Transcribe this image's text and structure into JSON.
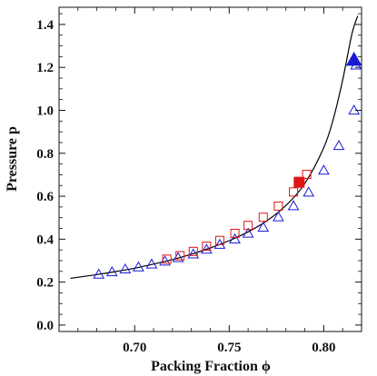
{
  "chart_data": {
    "type": "scatter",
    "title": "",
    "xlabel": "Packing Fraction ϕ",
    "ylabel": "Pressure p",
    "xlim": [
      0.66,
      0.82
    ],
    "ylim": [
      -0.03,
      1.48
    ],
    "x_ticks": [
      0.7,
      0.75,
      0.8
    ],
    "x_tick_labels": [
      "0.70",
      "0.75",
      "0.80"
    ],
    "y_ticks": [
      0.0,
      0.2,
      0.4,
      0.6,
      0.8,
      1.0,
      1.2,
      1.4
    ],
    "y_tick_labels": [
      "0.0",
      "0.2",
      "0.4",
      "0.6",
      "0.8",
      "1.0",
      "1.2",
      "1.4"
    ],
    "grid": false,
    "colors": {
      "curve": "#000000",
      "triangles": "#1a1ad6",
      "squares": "#e01414",
      "axes": "#111111"
    },
    "series": [
      {
        "marker": "open-triangle",
        "color": "#1a1ad6",
        "x": [
          0.681,
          0.688,
          0.695,
          0.702,
          0.709,
          0.716,
          0.723,
          0.731,
          0.738,
          0.745,
          0.753,
          0.76,
          0.768,
          0.776,
          0.784,
          0.792,
          0.8,
          0.808,
          0.816
        ],
        "y": [
          0.236,
          0.247,
          0.26,
          0.27,
          0.283,
          0.297,
          0.313,
          0.33,
          0.352,
          0.375,
          0.4,
          0.427,
          0.455,
          0.503,
          0.555,
          0.618,
          0.72,
          0.835,
          1.0
        ]
      },
      {
        "marker": "open-square",
        "color": "#e01414",
        "x": [
          0.717,
          0.724,
          0.731,
          0.738,
          0.745,
          0.753,
          0.76,
          0.768,
          0.776,
          0.784,
          0.791
        ],
        "y": [
          0.307,
          0.323,
          0.343,
          0.367,
          0.394,
          0.427,
          0.464,
          0.502,
          0.554,
          0.62,
          0.702
        ]
      },
      {
        "marker": "open-triangle",
        "color": "#1a1ad6",
        "x": [
          0.817
        ],
        "y": [
          1.21
        ]
      },
      {
        "marker": "filled-square",
        "color": "#e01414",
        "x": [
          0.787
        ],
        "y": [
          0.665
        ]
      },
      {
        "marker": "filled-triangle",
        "color": "#1a1ad6",
        "x": [
          0.816
        ],
        "y": [
          1.235
        ]
      }
    ],
    "curve": {
      "x": [
        0.666,
        0.68,
        0.69,
        0.7,
        0.71,
        0.72,
        0.73,
        0.74,
        0.75,
        0.76,
        0.77,
        0.78,
        0.79,
        0.8,
        0.805,
        0.81,
        0.815,
        0.818
      ],
      "y": [
        0.218,
        0.235,
        0.249,
        0.265,
        0.284,
        0.305,
        0.33,
        0.359,
        0.393,
        0.434,
        0.486,
        0.557,
        0.66,
        0.826,
        0.958,
        1.141,
        1.36,
        1.44
      ]
    }
  }
}
